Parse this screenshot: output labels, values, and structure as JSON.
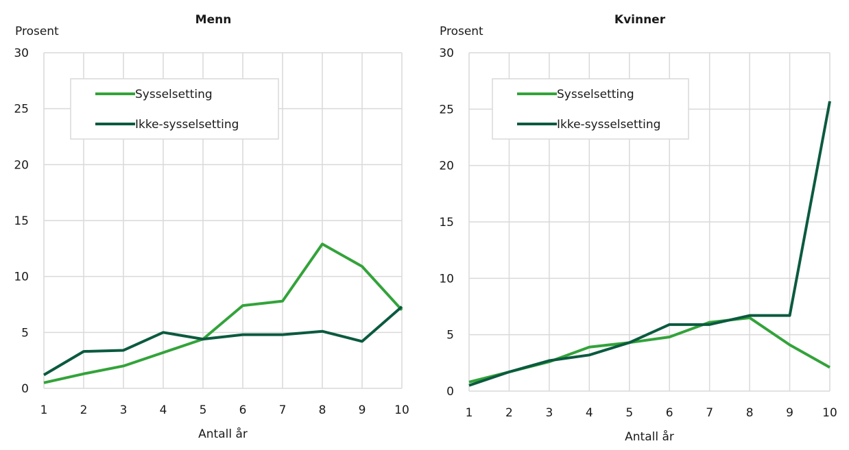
{
  "chart_data": [
    {
      "type": "line",
      "title": "Menn",
      "ylabel": "Prosent",
      "xlabel": "Antall år",
      "x": [
        1,
        2,
        3,
        4,
        5,
        6,
        7,
        8,
        9,
        10
      ],
      "ylim": [
        0,
        30
      ],
      "yticks": [
        0,
        5,
        10,
        15,
        20,
        25,
        30
      ],
      "grid": true,
      "legend_position": "upper-left inside",
      "series": [
        {
          "name": "Sysselsetting",
          "color": "#33a33a",
          "values": [
            0.5,
            1.3,
            2.0,
            3.2,
            4.4,
            7.4,
            7.8,
            12.9,
            10.9,
            7.0
          ]
        },
        {
          "name": "Ikke-sysselsetting",
          "color": "#0b5a3f",
          "values": [
            1.2,
            3.3,
            3.4,
            5.0,
            4.4,
            4.8,
            4.8,
            5.1,
            4.2,
            7.3
          ]
        }
      ]
    },
    {
      "type": "line",
      "title": "Kvinner",
      "ylabel": "Prosent",
      "xlabel": "Antall år",
      "x": [
        1,
        2,
        3,
        4,
        5,
        6,
        7,
        8,
        9,
        10
      ],
      "ylim": [
        0,
        30
      ],
      "yticks": [
        0,
        5,
        10,
        15,
        20,
        25,
        30
      ],
      "grid": true,
      "legend_position": "upper-left inside",
      "series": [
        {
          "name": "Sysselsetting",
          "color": "#33a33a",
          "values": [
            0.8,
            1.7,
            2.6,
            3.9,
            4.3,
            4.8,
            6.1,
            6.5,
            4.1,
            2.1
          ]
        },
        {
          "name": "Ikke-sysselsetting",
          "color": "#0b5a3f",
          "values": [
            0.5,
            1.7,
            2.7,
            3.2,
            4.3,
            5.9,
            5.9,
            6.7,
            6.7,
            25.7
          ]
        }
      ]
    }
  ]
}
